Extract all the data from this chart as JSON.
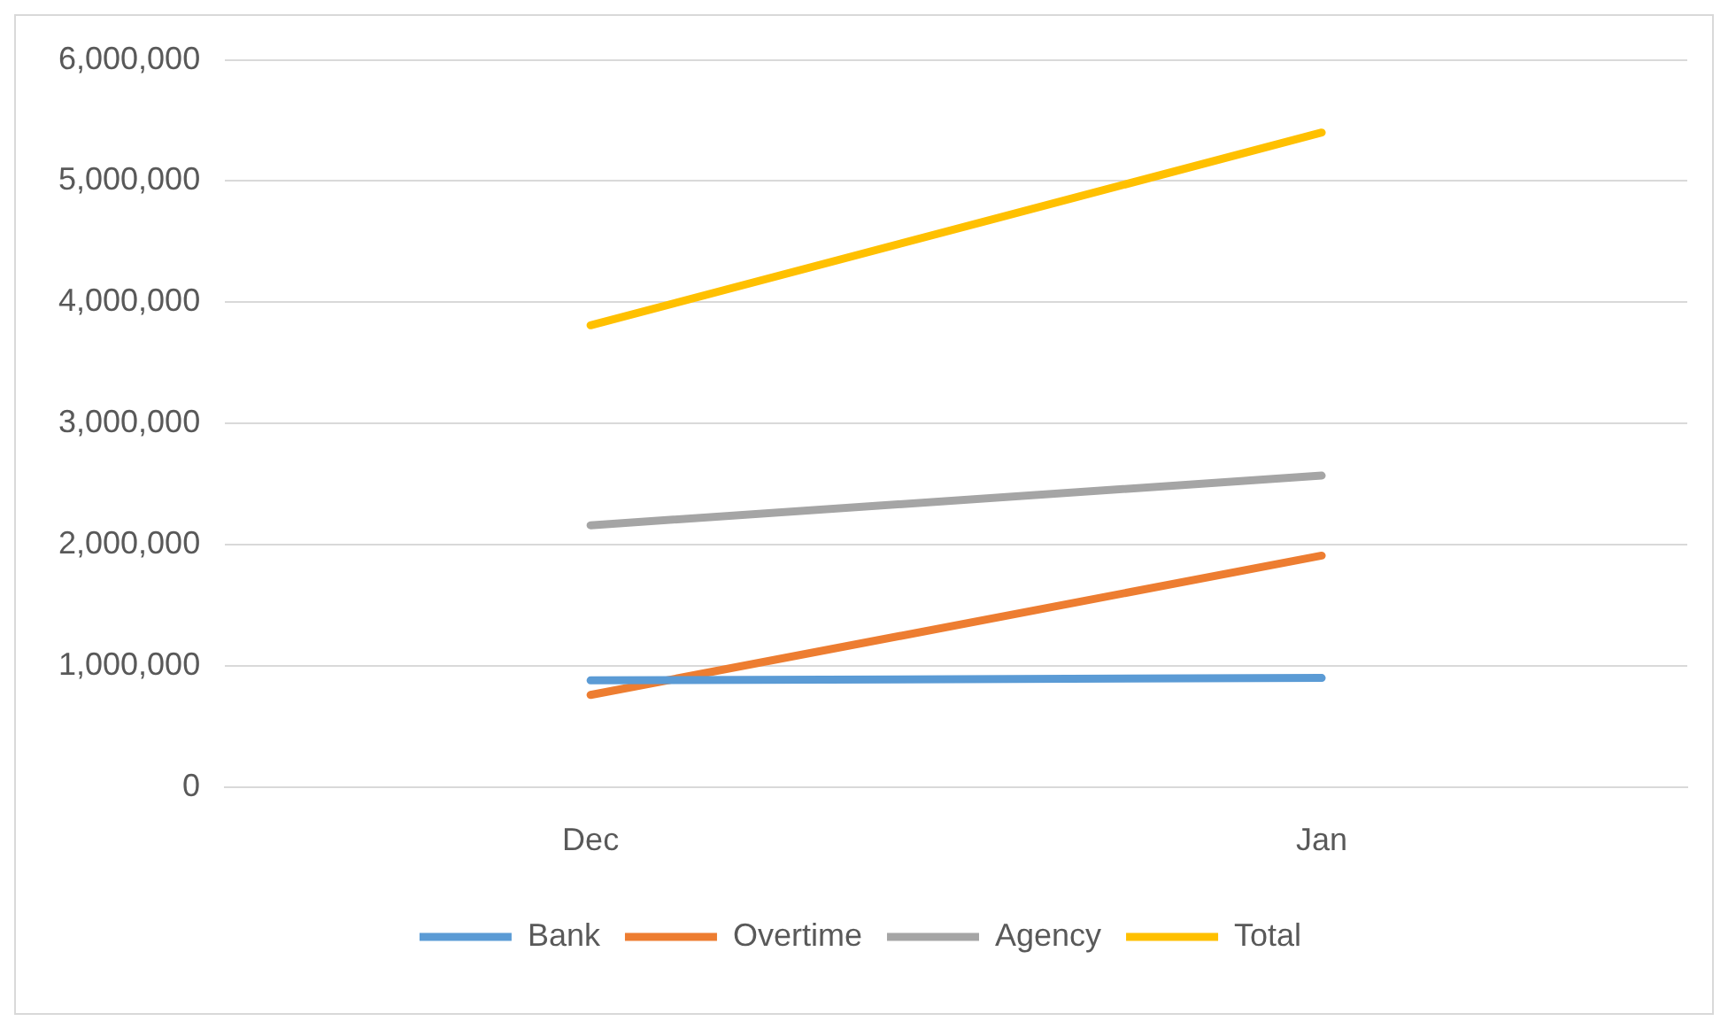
{
  "chart_data": {
    "type": "line",
    "categories": [
      "Dec",
      "Jan"
    ],
    "series": [
      {
        "name": "Bank",
        "color": "#5b9bd5",
        "values": [
          880000,
          900000
        ]
      },
      {
        "name": "Overtime",
        "color": "#ed7d31",
        "values": [
          760000,
          1910000
        ]
      },
      {
        "name": "Agency",
        "color": "#a5a5a5",
        "values": [
          2160000,
          2570000
        ]
      },
      {
        "name": "Total",
        "color": "#ffc000",
        "values": [
          3810000,
          5400000
        ]
      }
    ],
    "ylim": [
      0,
      6000000
    ],
    "yticks": [
      0,
      {
        "value": 1000000,
        "label": "1,000,000"
      },
      {
        "value": 2000000,
        "label": "2,000,000"
      },
      {
        "value": 3000000,
        "label": "3,000,000"
      },
      {
        "value": 4000000,
        "label": "4,000,000"
      },
      {
        "value": 5000000,
        "label": "5,000,000"
      },
      {
        "value": 6000000,
        "label": "6,000,000"
      }
    ],
    "grid": "y",
    "legend": "bottom",
    "marker": "none",
    "line_style": "solid"
  }
}
